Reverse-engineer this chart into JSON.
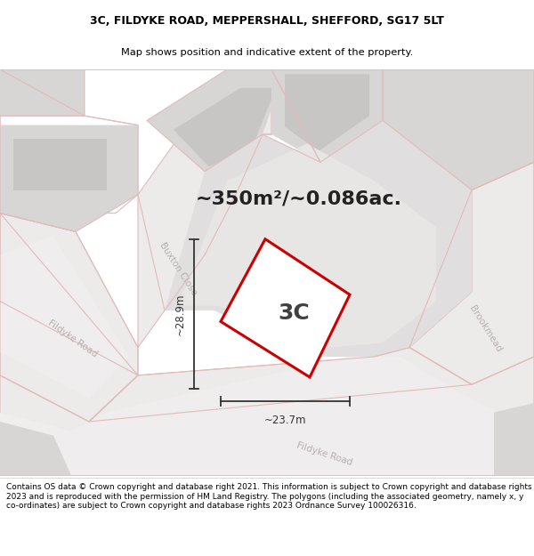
{
  "title_line1": "3C, FILDYKE ROAD, MEPPERSHALL, SHEFFORD, SG17 5LT",
  "title_line2": "Map shows position and indicative extent of the property.",
  "area_label": "~350m²/~0.086ac.",
  "plot_label": "3C",
  "dim_width": "~23.7m",
  "dim_height": "~28.9m",
  "footer_text": "Contains OS data © Crown copyright and database right 2021. This information is subject to Crown copyright and database rights 2023 and is reproduced with the permission of HM Land Registry. The polygons (including the associated geometry, namely x, y co-ordinates) are subject to Crown copyright and database rights 2023 Ordnance Survey 100026316.",
  "map_bg": "#f7f4f4",
  "block_color": "#d8d5d5",
  "road_color": "#edeaea",
  "road_outline_color": "#e0bcbc",
  "plot_outline_color": "#cc0000",
  "plot_fill": "#ffffff",
  "road_label_color": "#b8b0b0",
  "dim_color": "#333333",
  "title_bg": "#ffffff",
  "footer_bg": "#ffffff",
  "title_fontsize": 9.0,
  "subtitle_fontsize": 8.2,
  "area_fontsize": 16,
  "label_fontsize": 18,
  "footer_fontsize": 6.5,
  "road_label_fontsize": 7.5
}
